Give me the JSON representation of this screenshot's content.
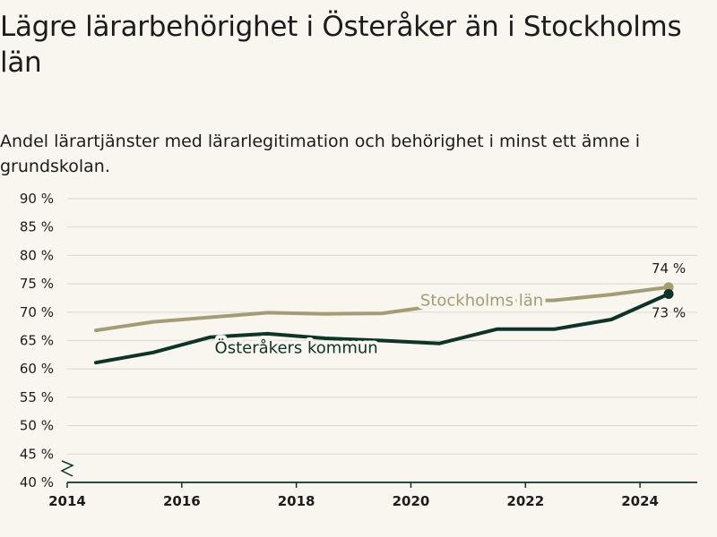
{
  "title": "Lägre lärarbehörighet i Österåker än i Stockholms län",
  "subtitle": "Andel lärartjänster med lärarlegitimation och behörighet i minst ett ämne i grundskolan.",
  "colors": {
    "osteraker": "#0f3329",
    "stockholm": "#a39c75",
    "grid": "#dedbd2",
    "axis": "#0f3329"
  },
  "chart_data": {
    "type": "line",
    "x_ticks": [
      2014,
      2016,
      2018,
      2020,
      2022,
      2024
    ],
    "y_ticks": [
      "40 %",
      "45 %",
      "50 %",
      "55 %",
      "60 %",
      "65 %",
      "70 %",
      "75 %",
      "80 %",
      "85 %",
      "90 %"
    ],
    "y_tick_values": [
      40,
      45,
      50,
      55,
      60,
      65,
      70,
      75,
      80,
      85,
      90
    ],
    "xlim": [
      2014,
      2025
    ],
    "ylim": [
      40,
      90
    ],
    "grid": true,
    "axis_break": true,
    "series": [
      {
        "name": "Stockholms län",
        "key": "stockholm",
        "x": [
          2014.5,
          2015.5,
          2016.5,
          2017.5,
          2018.5,
          2019.5,
          2020.5,
          2021.5,
          2022.5,
          2023.5,
          2024.5
        ],
        "y": [
          66.8,
          68.3,
          69.1,
          69.9,
          69.7,
          69.8,
          71.2,
          71.9,
          72.1,
          73.1,
          74.4
        ],
        "end_label": "74 %",
        "label_at": [
          2022.5,
          72.1
        ]
      },
      {
        "name": "Österåkers kommun",
        "key": "osteraker",
        "x": [
          2014.5,
          2015.5,
          2016.5,
          2017.5,
          2018.5,
          2019.5,
          2020.5,
          2021.5,
          2022.5,
          2023.5,
          2024.5
        ],
        "y": [
          61.1,
          62.9,
          65.6,
          66.2,
          65.4,
          65.0,
          64.5,
          67.0,
          67.0,
          68.7,
          73.2
        ],
        "end_label": "73 %",
        "label_at": [
          2018,
          65.0
        ]
      }
    ]
  }
}
